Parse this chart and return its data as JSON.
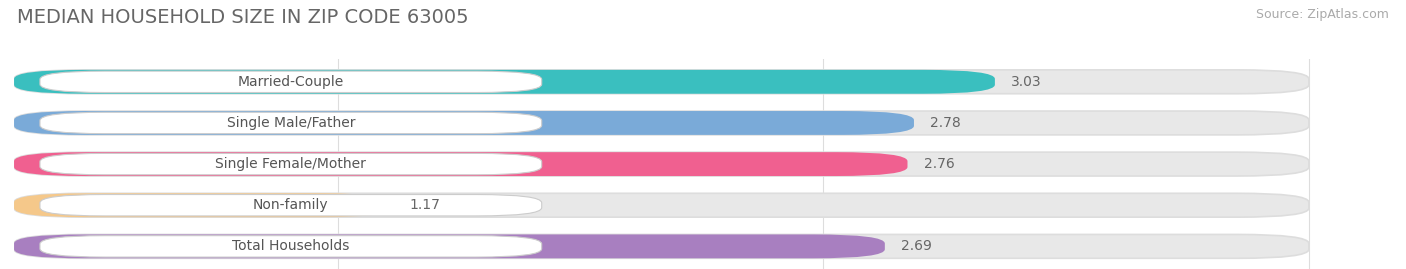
{
  "title": "MEDIAN HOUSEHOLD SIZE IN ZIP CODE 63005",
  "source": "Source: ZipAtlas.com",
  "categories": [
    "Married-Couple",
    "Single Male/Father",
    "Single Female/Mother",
    "Non-family",
    "Total Households"
  ],
  "values": [
    3.03,
    2.78,
    2.76,
    1.17,
    2.69
  ],
  "bar_colors": [
    "#3abfbf",
    "#7aaad8",
    "#f06090",
    "#f5c88a",
    "#a87fc0"
  ],
  "background_color": "#f5f5f5",
  "bar_bg_color": "#e8e8e8",
  "label_bg_color": "#ffffff",
  "xlim_data": [
    0,
    4.3
  ],
  "xmin": 0,
  "xmax": 4.0,
  "xticks": [
    1.0,
    2.5,
    4.0
  ],
  "title_fontsize": 14,
  "source_fontsize": 9,
  "label_fontsize": 10,
  "value_fontsize": 10
}
